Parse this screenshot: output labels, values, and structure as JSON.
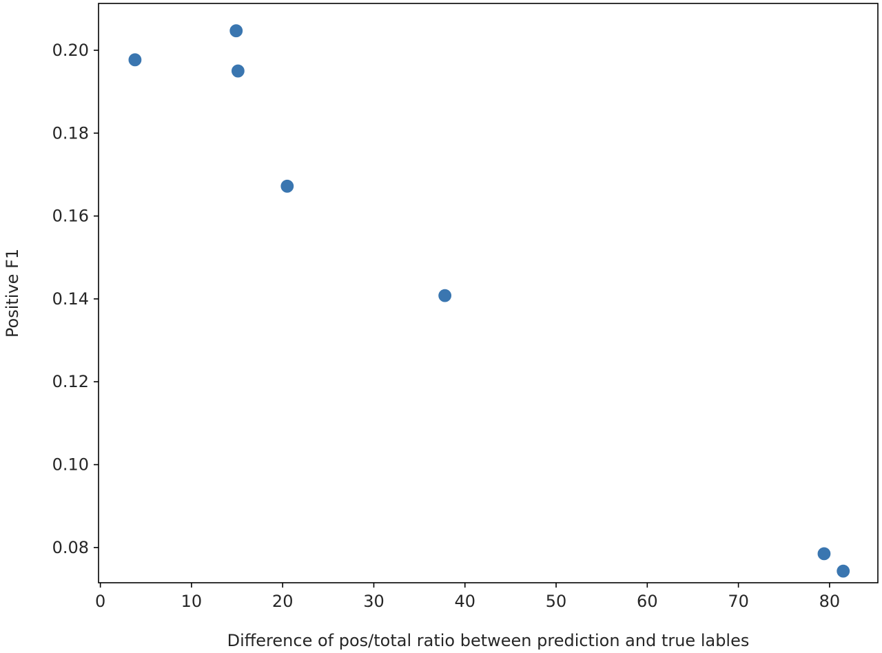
{
  "chart_data": {
    "type": "scatter",
    "title": "",
    "xlabel": "Difference of pos/total ratio between prediction and true lables",
    "ylabel": "Positive F1",
    "xlim": [
      -0.2,
      85.3
    ],
    "ylim": [
      0.0715,
      0.2113
    ],
    "x_ticks": [
      0,
      10,
      20,
      30,
      40,
      50,
      60,
      70,
      80
    ],
    "y_ticks": [
      0.08,
      0.1,
      0.12,
      0.14,
      0.16,
      0.18,
      0.2
    ],
    "x_tick_labels": [
      "0",
      "10",
      "20",
      "30",
      "40",
      "50",
      "60",
      "70",
      "80"
    ],
    "y_tick_labels": [
      "0.08",
      "0.10",
      "0.12",
      "0.14",
      "0.16",
      "0.18",
      "0.20"
    ],
    "grid": false,
    "marker_color": "#3a76b0",
    "series": [
      {
        "points": [
          {
            "x": 3.8,
            "y": 0.1977
          },
          {
            "x": 14.9,
            "y": 0.2047
          },
          {
            "x": 15.1,
            "y": 0.195
          },
          {
            "x": 20.5,
            "y": 0.1672
          },
          {
            "x": 37.8,
            "y": 0.1408
          },
          {
            "x": 79.4,
            "y": 0.0785
          },
          {
            "x": 81.5,
            "y": 0.0743
          }
        ]
      }
    ]
  }
}
